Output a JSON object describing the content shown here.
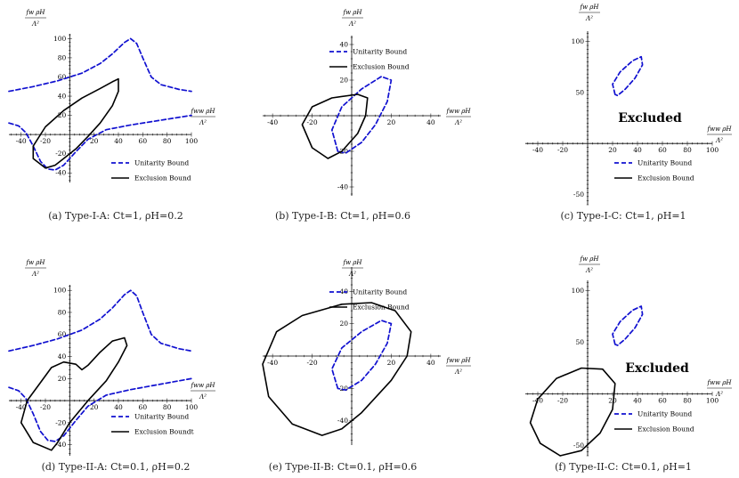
{
  "labels": {
    "x_axis": "fww ρH",
    "x_axis_denom": "Λ²",
    "y_axis": "fw ρH",
    "y_axis_denom": "Λ²",
    "unitarity": "Unitarity Bound",
    "exclusion": "Exclusion Bound",
    "exclusion_alt": "Exclusion Boundt",
    "excluded": "Excluded"
  },
  "colors": {
    "unitarity": "#1010d0",
    "exclusion": "#000000",
    "axis": "#000000"
  },
  "chart_data": [
    {
      "id": "a",
      "type": "line",
      "caption": "(a) Type-I-A: Ct=1, ρH=0.2",
      "xlim": [
        -50,
        100
      ],
      "ylim": [
        -50,
        105
      ],
      "xticks": [
        -40,
        -20,
        20,
        40,
        60,
        80,
        100
      ],
      "yticks": [
        -40,
        -20,
        20,
        40,
        60,
        80,
        100
      ],
      "legend_position": "bottom-right",
      "series": [
        {
          "style": "dashed",
          "color": "unitarity",
          "points": [
            [
              -50,
              45
            ],
            [
              -30,
              50
            ],
            [
              -10,
              56
            ],
            [
              10,
              64
            ],
            [
              25,
              74
            ],
            [
              35,
              84
            ],
            [
              45,
              96
            ],
            [
              50,
              100
            ],
            [
              55,
              95
            ],
            [
              60,
              80
            ],
            [
              67,
              60
            ],
            [
              75,
              52
            ],
            [
              90,
              47
            ],
            [
              100,
              45
            ]
          ]
        },
        {
          "style": "dashed",
          "color": "unitarity",
          "points": [
            [
              -50,
              12
            ],
            [
              -42,
              9
            ],
            [
              -36,
              2
            ],
            [
              -30,
              -12
            ],
            [
              -24,
              -28
            ],
            [
              -18,
              -36
            ],
            [
              -12,
              -37
            ],
            [
              -5,
              -32
            ],
            [
              5,
              -18
            ],
            [
              15,
              -5
            ],
            [
              30,
              5
            ],
            [
              50,
              10
            ],
            [
              75,
              15
            ],
            [
              100,
              20
            ]
          ]
        },
        {
          "style": "solid",
          "color": "exclusion",
          "points": [
            [
              -20,
              -35
            ],
            [
              -30,
              -25
            ],
            [
              -30,
              -12
            ],
            [
              -20,
              8
            ],
            [
              -5,
              25
            ],
            [
              10,
              38
            ],
            [
              25,
              48
            ],
            [
              35,
              55
            ],
            [
              40,
              58
            ],
            [
              40,
              45
            ],
            [
              35,
              30
            ],
            [
              25,
              12
            ],
            [
              15,
              -2
            ],
            [
              5,
              -15
            ],
            [
              -5,
              -25
            ],
            [
              -12,
              -32
            ],
            [
              -20,
              -35
            ]
          ]
        }
      ]
    },
    {
      "id": "b",
      "type": "line",
      "caption": "(b) Type-I-B: Ct=1, ρH=0.6",
      "xlim": [
        -45,
        45
      ],
      "ylim": [
        -45,
        45
      ],
      "xticks": [
        -40,
        -20,
        20,
        40
      ],
      "yticks": [
        -40,
        -20,
        20,
        40
      ],
      "legend_position": "top-right",
      "series": [
        {
          "style": "dashed",
          "color": "unitarity",
          "points": [
            [
              -7,
              -20
            ],
            [
              -10,
              -8
            ],
            [
              -5,
              5
            ],
            [
              5,
              15
            ],
            [
              15,
              22
            ],
            [
              20,
              20
            ],
            [
              18,
              8
            ],
            [
              12,
              -5
            ],
            [
              5,
              -15
            ],
            [
              -3,
              -21
            ],
            [
              -7,
              -20
            ]
          ]
        },
        {
          "style": "solid",
          "color": "exclusion",
          "points": [
            [
              -12,
              -24
            ],
            [
              -20,
              -18
            ],
            [
              -25,
              -5
            ],
            [
              -20,
              5
            ],
            [
              -10,
              10
            ],
            [
              3,
              12
            ],
            [
              8,
              10
            ],
            [
              7,
              0
            ],
            [
              3,
              -10
            ],
            [
              -5,
              -20
            ],
            [
              -12,
              -24
            ]
          ]
        }
      ]
    },
    {
      "id": "c",
      "type": "line",
      "caption": "(c) Type-I-C: Ct=1, ρH=1",
      "xlim": [
        -50,
        100
      ],
      "ylim": [
        -60,
        110
      ],
      "xticks": [
        -40,
        -20,
        20,
        40,
        60,
        80,
        100
      ],
      "yticks": [
        -50,
        50,
        100
      ],
      "legend_position": "bottom-right",
      "annotation": "Excluded",
      "series": [
        {
          "style": "dashed",
          "color": "unitarity",
          "points": [
            [
              22,
              48
            ],
            [
              20,
              58
            ],
            [
              26,
              70
            ],
            [
              36,
              81
            ],
            [
              43,
              85
            ],
            [
              44,
              77
            ],
            [
              38,
              64
            ],
            [
              30,
              53
            ],
            [
              24,
              47
            ],
            [
              22,
              48
            ]
          ]
        }
      ]
    },
    {
      "id": "d",
      "type": "line",
      "caption": "(d) Type-II-A: Ct=0.1, ρH=0.2",
      "xlim": [
        -50,
        100
      ],
      "ylim": [
        -50,
        105
      ],
      "xticks": [
        -40,
        -20,
        20,
        40,
        60,
        80,
        100
      ],
      "yticks": [
        -40,
        -20,
        20,
        40,
        60,
        80,
        100
      ],
      "legend_position": "bottom-right",
      "series": [
        {
          "style": "dashed",
          "color": "unitarity",
          "points": [
            [
              -50,
              45
            ],
            [
              -30,
              50
            ],
            [
              -10,
              56
            ],
            [
              10,
              64
            ],
            [
              25,
              74
            ],
            [
              35,
              84
            ],
            [
              45,
              96
            ],
            [
              50,
              100
            ],
            [
              55,
              95
            ],
            [
              60,
              80
            ],
            [
              67,
              60
            ],
            [
              75,
              52
            ],
            [
              90,
              47
            ],
            [
              100,
              45
            ]
          ]
        },
        {
          "style": "dashed",
          "color": "unitarity",
          "points": [
            [
              -50,
              12
            ],
            [
              -42,
              9
            ],
            [
              -36,
              2
            ],
            [
              -30,
              -12
            ],
            [
              -24,
              -28
            ],
            [
              -18,
              -36
            ],
            [
              -12,
              -37
            ],
            [
              -5,
              -32
            ],
            [
              5,
              -18
            ],
            [
              15,
              -5
            ],
            [
              30,
              5
            ],
            [
              50,
              10
            ],
            [
              75,
              15
            ],
            [
              100,
              20
            ]
          ]
        },
        {
          "style": "solid",
          "color": "exclusion",
          "points": [
            [
              -15,
              -45
            ],
            [
              -30,
              -38
            ],
            [
              -40,
              -20
            ],
            [
              -35,
              0
            ],
            [
              -25,
              15
            ],
            [
              -15,
              30
            ],
            [
              -5,
              35
            ],
            [
              5,
              33
            ],
            [
              10,
              28
            ],
            [
              15,
              32
            ],
            [
              25,
              44
            ],
            [
              35,
              54
            ],
            [
              45,
              57
            ],
            [
              47,
              50
            ],
            [
              40,
              35
            ],
            [
              30,
              18
            ],
            [
              15,
              0
            ],
            [
              0,
              -20
            ],
            [
              -10,
              -38
            ],
            [
              -15,
              -45
            ]
          ]
        }
      ]
    },
    {
      "id": "e",
      "type": "line",
      "caption": "(e) Type-II-B: Ct=0.1, ρH=0.6",
      "xlim": [
        -45,
        45
      ],
      "ylim": [
        -55,
        55
      ],
      "xticks": [
        -40,
        -20,
        20,
        40
      ],
      "yticks": [
        -40,
        -20,
        20,
        40
      ],
      "legend_position": "top-right",
      "series": [
        {
          "style": "dashed",
          "color": "unitarity",
          "points": [
            [
              -7,
              -20
            ],
            [
              -10,
              -8
            ],
            [
              -5,
              5
            ],
            [
              5,
              15
            ],
            [
              15,
              22
            ],
            [
              20,
              20
            ],
            [
              18,
              8
            ],
            [
              12,
              -5
            ],
            [
              5,
              -15
            ],
            [
              -3,
              -21
            ],
            [
              -7,
              -20
            ]
          ]
        },
        {
          "style": "solid",
          "color": "exclusion",
          "points": [
            [
              -15,
              -49
            ],
            [
              -30,
              -42
            ],
            [
              -42,
              -25
            ],
            [
              -45,
              -5
            ],
            [
              -38,
              15
            ],
            [
              -25,
              25
            ],
            [
              -5,
              32
            ],
            [
              10,
              33
            ],
            [
              22,
              28
            ],
            [
              30,
              15
            ],
            [
              28,
              0
            ],
            [
              20,
              -15
            ],
            [
              5,
              -35
            ],
            [
              -5,
              -45
            ],
            [
              -15,
              -49
            ]
          ]
        }
      ]
    },
    {
      "id": "f",
      "type": "line",
      "caption": "(f) Type-II-C: Ct=0.1, ρH=1",
      "xlim": [
        -50,
        100
      ],
      "ylim": [
        -60,
        110
      ],
      "xticks": [
        -40,
        -20,
        20,
        40,
        60,
        80,
        100
      ],
      "yticks": [
        -50,
        50,
        100
      ],
      "legend_position": "bottom-right",
      "annotation": "Excluded",
      "series": [
        {
          "style": "dashed",
          "color": "unitarity",
          "points": [
            [
              22,
              48
            ],
            [
              20,
              58
            ],
            [
              26,
              70
            ],
            [
              36,
              81
            ],
            [
              43,
              85
            ],
            [
              44,
              77
            ],
            [
              38,
              64
            ],
            [
              30,
              53
            ],
            [
              24,
              47
            ],
            [
              22,
              48
            ]
          ]
        },
        {
          "style": "solid",
          "color": "exclusion",
          "points": [
            [
              -22,
              -60
            ],
            [
              -38,
              -48
            ],
            [
              -46,
              -28
            ],
            [
              -40,
              -5
            ],
            [
              -25,
              15
            ],
            [
              -5,
              25
            ],
            [
              12,
              24
            ],
            [
              22,
              10
            ],
            [
              20,
              -15
            ],
            [
              10,
              -38
            ],
            [
              -5,
              -55
            ],
            [
              -22,
              -60
            ]
          ]
        }
      ]
    }
  ]
}
